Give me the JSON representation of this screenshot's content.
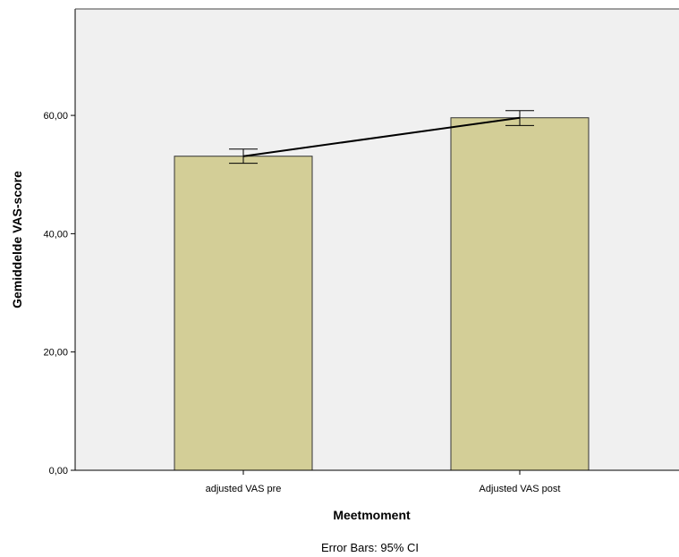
{
  "chart_data": {
    "type": "bar",
    "categories": [
      "adjusted VAS pre",
      "Adjusted VAS post"
    ],
    "values": [
      53.1,
      59.6
    ],
    "error_bars": {
      "lower": [
        51.9,
        58.3
      ],
      "upper": [
        54.3,
        60.8
      ]
    },
    "connecting_line": true,
    "xlabel": "Meetmoment",
    "ylabel": "Gemiddelde VAS-score",
    "ylim": [
      0,
      78
    ],
    "yticks": [
      0,
      20,
      40,
      60
    ],
    "ytick_labels": [
      "0,00",
      "20,00",
      "40,00",
      "60,00"
    ],
    "footnote": "Error Bars: 95% CI",
    "grid": false,
    "colors": {
      "plot_background": "#f0f0f0",
      "bar_fill": "#d3ce97",
      "bar_stroke": "#333333",
      "line": "#000000"
    }
  }
}
